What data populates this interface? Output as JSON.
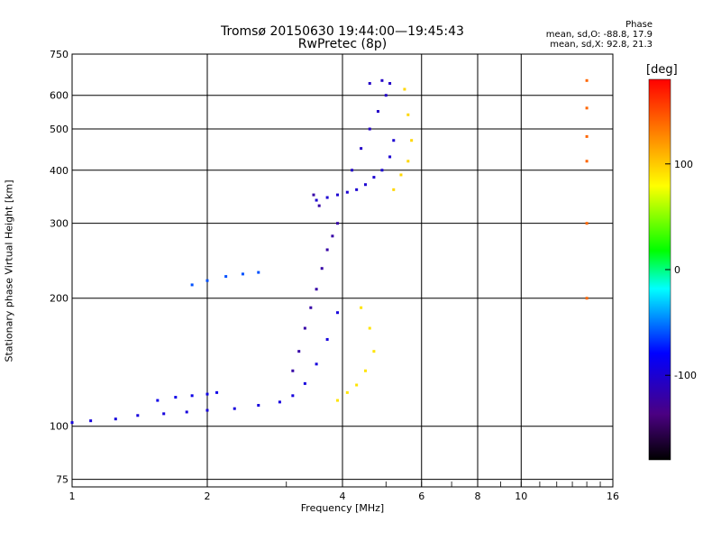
{
  "chart_data": {
    "type": "scatter",
    "title": "Tromsø 20150630 19:44:00—19:45:43",
    "subtitle": "RwPretec (8p)",
    "xlabel": "Frequency [MHz]",
    "ylabel": "Stationary phase Virtual Height [km]",
    "xscale": "log",
    "yscale": "log",
    "xlim": [
      1,
      16
    ],
    "ylim": [
      72,
      750
    ],
    "xticks": [
      1,
      2,
      4,
      6,
      8,
      10,
      16
    ],
    "yticks": [
      75,
      100,
      200,
      300,
      400,
      500,
      600,
      750
    ],
    "grid": true,
    "stats_header": "Phase",
    "stats": [
      "mean, sd,O: -88.8, 17.9",
      "mean, sd,X:  92.8, 21.3"
    ],
    "colorbar": {
      "label": "[deg]",
      "range": [
        -180,
        180
      ],
      "ticks": [
        100,
        0,
        -100
      ]
    },
    "series": [
      {
        "phase": -95,
        "x": [
          1.0,
          1.1,
          1.25,
          1.4,
          1.6,
          1.8,
          2.0,
          2.3,
          2.6,
          2.9,
          3.1,
          3.3,
          3.5,
          3.7,
          3.9
        ],
        "y": [
          102,
          103,
          104,
          106,
          107,
          108,
          109,
          110,
          112,
          114,
          118,
          126,
          140,
          160,
          185
        ]
      },
      {
        "phase": -90,
        "x": [
          1.55,
          1.7,
          1.85,
          2.0,
          2.1
        ],
        "y": [
          115,
          117,
          118,
          119,
          120
        ]
      },
      {
        "phase": -120,
        "x": [
          3.1,
          3.2,
          3.3,
          3.4,
          3.5,
          3.6,
          3.7,
          3.8,
          3.9,
          3.55,
          3.45
        ],
        "y": [
          135,
          150,
          170,
          190,
          210,
          235,
          260,
          280,
          300,
          330,
          350
        ]
      },
      {
        "phase": -100,
        "x": [
          3.5,
          3.7,
          3.9,
          4.1,
          4.3,
          4.5,
          4.7,
          4.9,
          5.1,
          5.2
        ],
        "y": [
          340,
          345,
          350,
          355,
          360,
          370,
          385,
          400,
          430,
          470
        ]
      },
      {
        "phase": -105,
        "x": [
          4.2,
          4.4,
          4.6,
          4.8,
          5.0,
          5.1,
          4.9,
          4.6
        ],
        "y": [
          400,
          450,
          500,
          550,
          600,
          640,
          650,
          640
        ]
      },
      {
        "phase": 90,
        "x": [
          3.9,
          4.1,
          4.3,
          4.5,
          4.7,
          4.6,
          4.4
        ],
        "y": [
          115,
          120,
          125,
          135,
          150,
          170,
          190
        ]
      },
      {
        "phase": 95,
        "x": [
          5.2,
          5.4,
          5.6,
          5.7,
          5.6,
          5.5
        ],
        "y": [
          360,
          390,
          420,
          470,
          540,
          620
        ]
      },
      {
        "phase": 140,
        "x": [
          14.0,
          14.0,
          14.0,
          14.0,
          14.0,
          14.0
        ],
        "y": [
          650,
          560,
          480,
          420,
          300,
          200
        ]
      },
      {
        "phase": -60,
        "x": [
          1.85,
          2.0,
          2.2,
          2.4,
          2.6
        ],
        "y": [
          215,
          220,
          225,
          228,
          230
        ]
      }
    ]
  }
}
